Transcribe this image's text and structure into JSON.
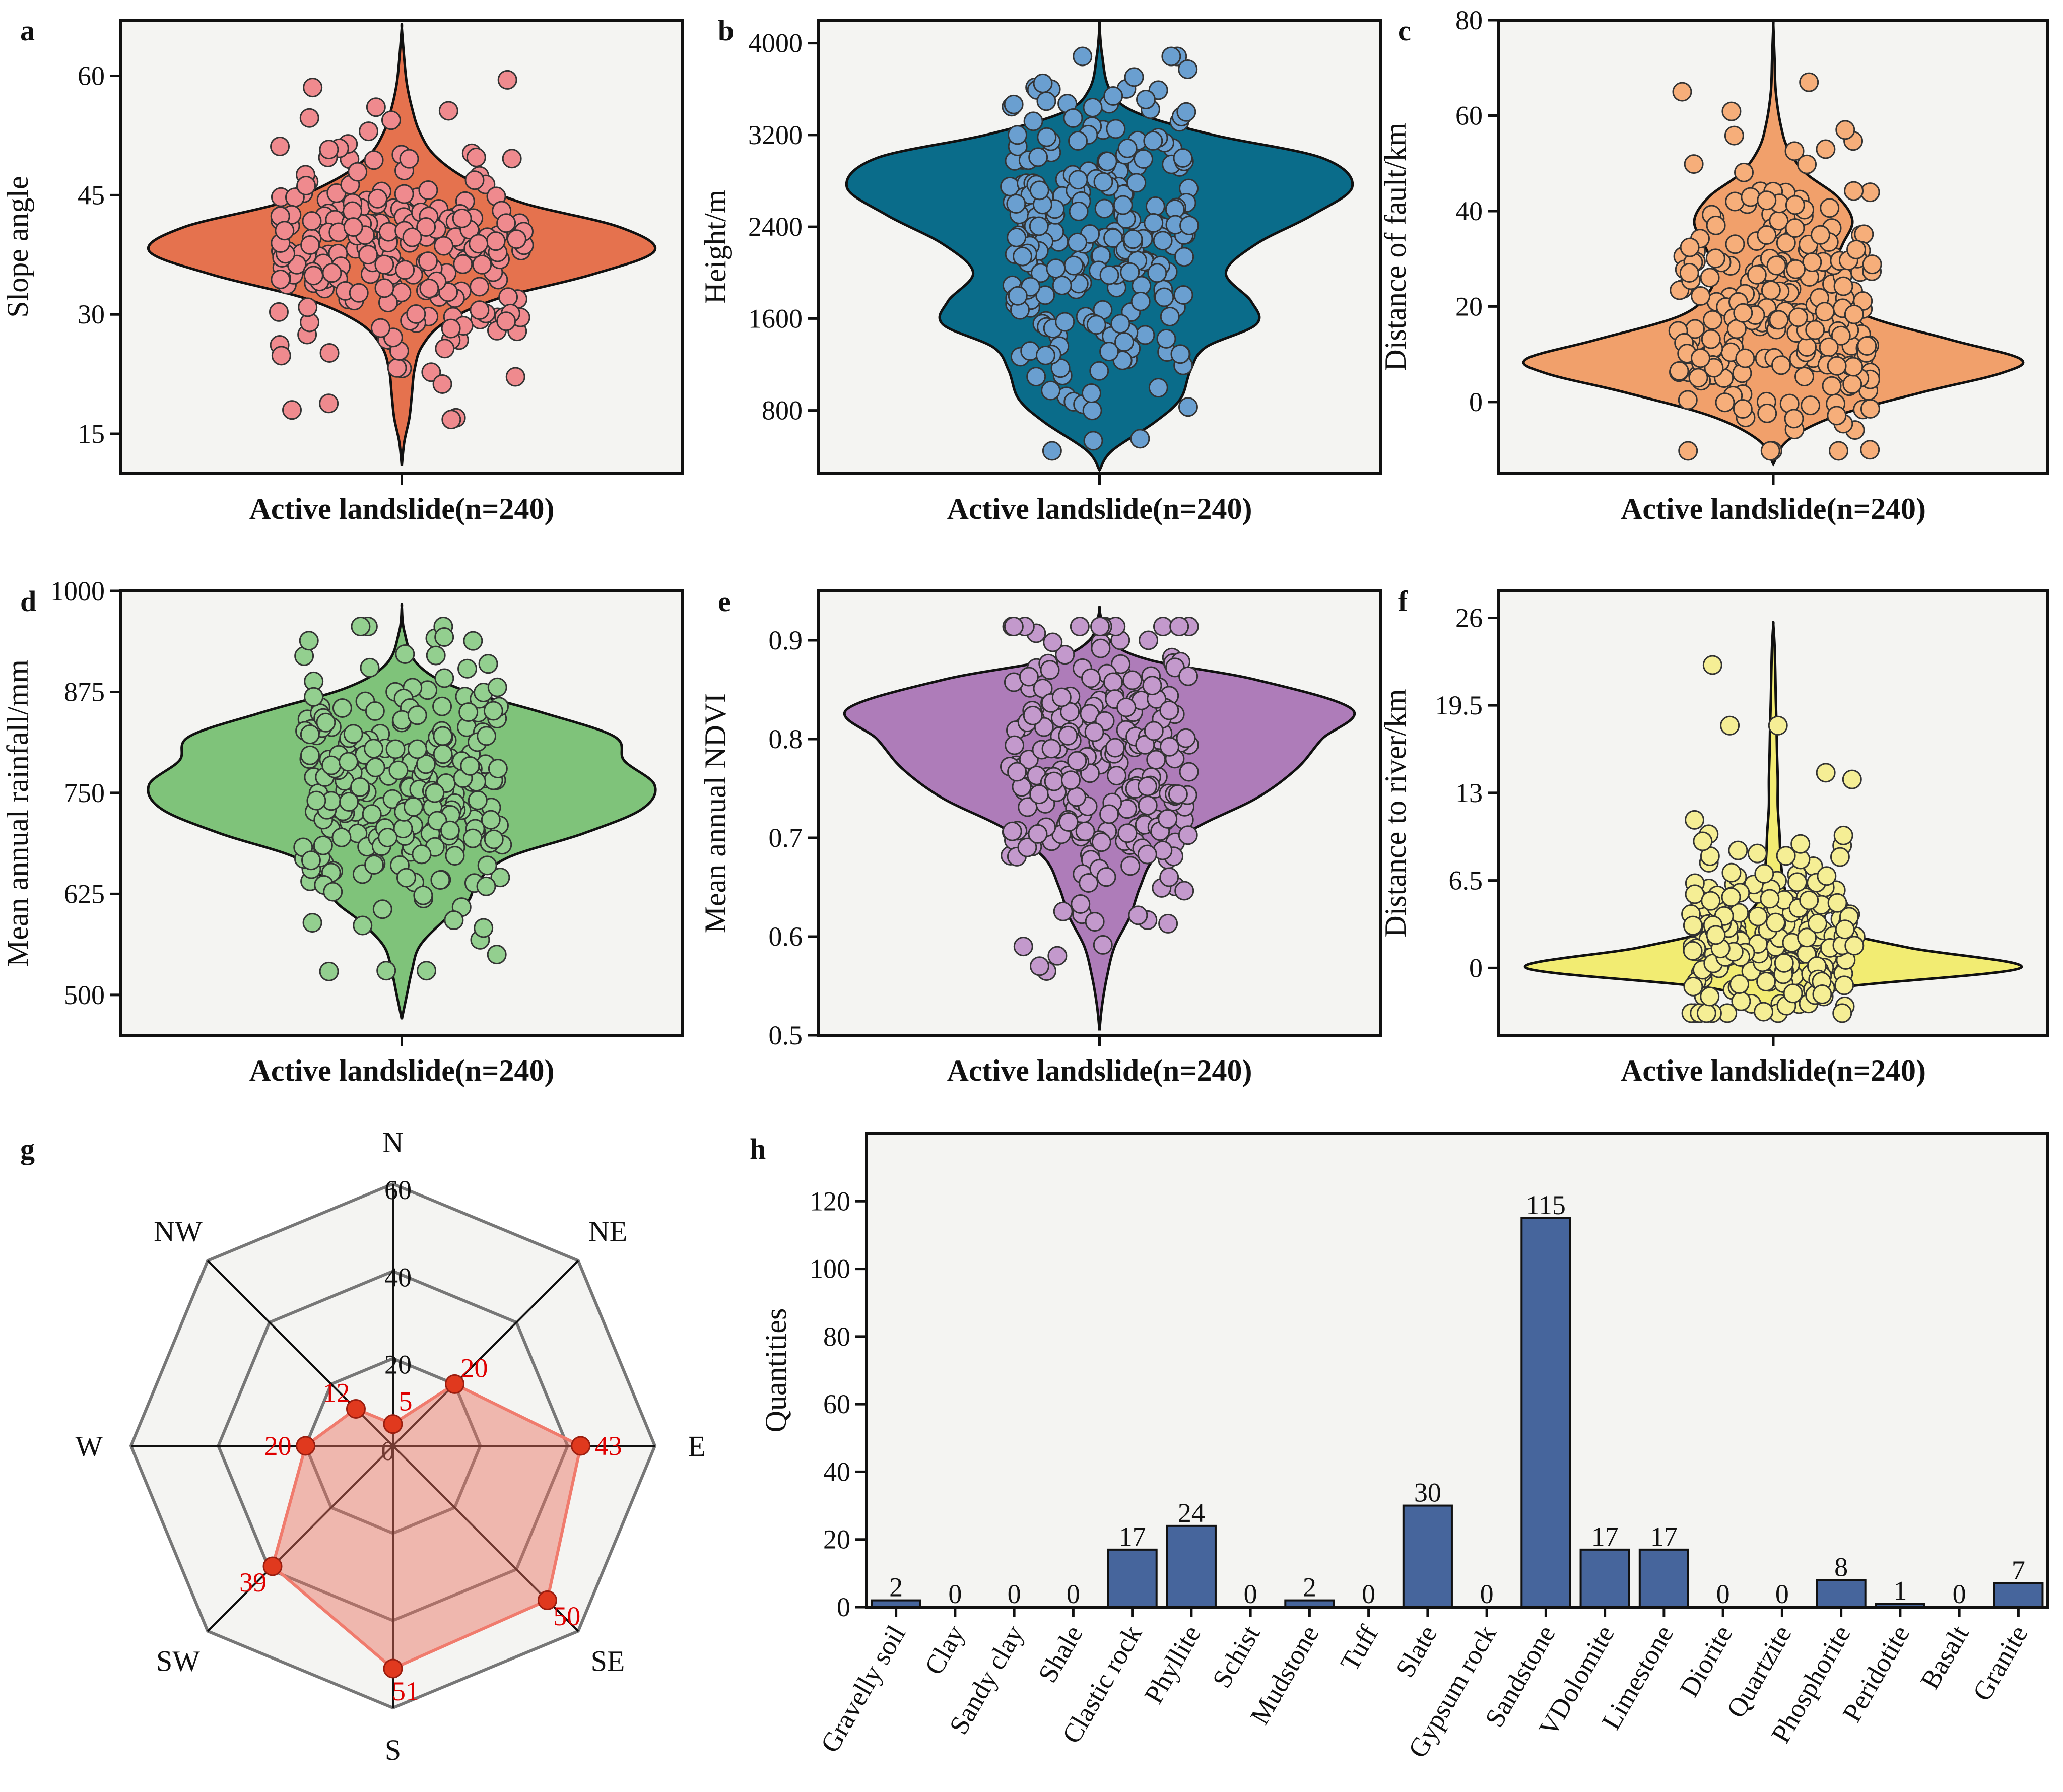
{
  "panels": [
    {
      "id": "a",
      "label": "a",
      "ylabel": "Slope angle",
      "xlabel": "Active landslide(n=240)",
      "ylim": [
        10,
        67
      ],
      "yticks": [
        15,
        30,
        45,
        60
      ],
      "fill": "#e5724e",
      "dot": "#ef8a8e",
      "density": [
        [
          11,
          0.0
        ],
        [
          14,
          0.01
        ],
        [
          17,
          0.03
        ],
        [
          20,
          0.04
        ],
        [
          23,
          0.05
        ],
        [
          26,
          0.08
        ],
        [
          29,
          0.17
        ],
        [
          32,
          0.38
        ],
        [
          35,
          0.75
        ],
        [
          38,
          1.0
        ],
        [
          41,
          0.86
        ],
        [
          44,
          0.48
        ],
        [
          47,
          0.26
        ],
        [
          50,
          0.13
        ],
        [
          53,
          0.07
        ],
        [
          56,
          0.04
        ],
        [
          59,
          0.02
        ],
        [
          62,
          0.01
        ],
        [
          66,
          0.0
        ]
      ],
      "points": {
        "center": 38,
        "spread": 7,
        "jitter": 0.22,
        "seed": 3,
        "extra": [
          59.5,
          55.6,
          18,
          16.8
        ]
      }
    },
    {
      "id": "b",
      "label": "b",
      "ylabel": "Height/m",
      "xlabel": "Active landslide(n=240)",
      "ylim": [
        250,
        4200
      ],
      "yticks": [
        800,
        1600,
        2400,
        3200,
        4000
      ],
      "fill": "#0a6c8a",
      "dot": "#6a9fd0",
      "density": [
        [
          280,
          0.0
        ],
        [
          450,
          0.05
        ],
        [
          700,
          0.22
        ],
        [
          900,
          0.32
        ],
        [
          1150,
          0.36
        ],
        [
          1350,
          0.42
        ],
        [
          1550,
          0.62
        ],
        [
          1750,
          0.6
        ],
        [
          2000,
          0.5
        ],
        [
          2250,
          0.62
        ],
        [
          2500,
          0.84
        ],
        [
          2750,
          1.0
        ],
        [
          3000,
          0.88
        ],
        [
          3200,
          0.45
        ],
        [
          3400,
          0.14
        ],
        [
          3600,
          0.04
        ],
        [
          3900,
          0.01
        ],
        [
          4150,
          0.0
        ]
      ],
      "points": {
        "center": 2300,
        "spread": 700,
        "jitter": 0.16,
        "seed": 7,
        "extra": [
          3400,
          3650,
          800,
          950
        ]
      }
    },
    {
      "id": "c",
      "label": "c",
      "ylabel": "Distance of fault/km",
      "xlabel": "Active landslide(n=240)",
      "ylim": [
        -15,
        80
      ],
      "yticks": [
        0,
        20,
        40,
        60,
        80
      ],
      "fill": "#f1a06b",
      "dot": "#f6ae7a",
      "density": [
        [
          -13,
          0.0
        ],
        [
          -8,
          0.06
        ],
        [
          -3,
          0.25
        ],
        [
          2,
          0.6
        ],
        [
          6,
          0.92
        ],
        [
          9,
          1.0
        ],
        [
          13,
          0.72
        ],
        [
          18,
          0.38
        ],
        [
          23,
          0.26
        ],
        [
          28,
          0.24
        ],
        [
          33,
          0.28
        ],
        [
          38,
          0.32
        ],
        [
          43,
          0.26
        ],
        [
          48,
          0.13
        ],
        [
          53,
          0.06
        ],
        [
          58,
          0.03
        ],
        [
          65,
          0.01
        ],
        [
          72,
          0.005
        ],
        [
          79,
          0.0
        ]
      ],
      "points": {
        "center": 20,
        "spread": 15,
        "jitter": 0.18,
        "seed": 11,
        "extra": [
          65,
          67,
          57,
          37
        ]
      }
    },
    {
      "id": "d",
      "label": "d",
      "ylabel": "Mean annual rainfall/mm",
      "xlabel": "Active landslide(n=240)",
      "ylim": [
        450,
        1000
      ],
      "yticks": [
        500,
        625,
        750,
        875,
        1000
      ],
      "fill": "#7fc37a",
      "dot": "#93cf8f",
      "density": [
        [
          470,
          0.0
        ],
        [
          500,
          0.02
        ],
        [
          530,
          0.04
        ],
        [
          560,
          0.07
        ],
        [
          590,
          0.16
        ],
        [
          615,
          0.26
        ],
        [
          640,
          0.3
        ],
        [
          670,
          0.42
        ],
        [
          700,
          0.72
        ],
        [
          730,
          0.95
        ],
        [
          760,
          1.0
        ],
        [
          790,
          0.88
        ],
        [
          820,
          0.84
        ],
        [
          850,
          0.55
        ],
        [
          880,
          0.22
        ],
        [
          910,
          0.06
        ],
        [
          950,
          0.01
        ],
        [
          980,
          0.0
        ]
      ],
      "points": {
        "center": 750,
        "spread": 80,
        "jitter": 0.18,
        "seed": 17,
        "extra": [
          530,
          530,
          550,
          905
        ]
      }
    },
    {
      "id": "e",
      "label": "e",
      "ylabel": "Mean annual NDVI",
      "xlabel": "Active landslide(n=240)",
      "ylim": [
        0.5,
        0.95
      ],
      "yticks": [
        0.5,
        0.6,
        0.7,
        0.8,
        0.9
      ],
      "fill": "#ae7cb9",
      "dot": "#c399cc",
      "density": [
        [
          0.505,
          0.0
        ],
        [
          0.53,
          0.01
        ],
        [
          0.56,
          0.03
        ],
        [
          0.59,
          0.06
        ],
        [
          0.62,
          0.12
        ],
        [
          0.65,
          0.16
        ],
        [
          0.68,
          0.22
        ],
        [
          0.71,
          0.38
        ],
        [
          0.74,
          0.62
        ],
        [
          0.77,
          0.78
        ],
        [
          0.8,
          0.88
        ],
        [
          0.83,
          1.0
        ],
        [
          0.86,
          0.62
        ],
        [
          0.88,
          0.2
        ],
        [
          0.9,
          0.04
        ],
        [
          0.93,
          0.0
        ]
      ],
      "points": {
        "center": 0.77,
        "spread": 0.07,
        "jitter": 0.16,
        "seed": 23,
        "extra": [
          0.565,
          0.57,
          0.59,
          0.615
        ]
      }
    },
    {
      "id": "f",
      "label": "f",
      "ylabel": "Distance to river/km",
      "xlabel": "Active landslide(n=240)",
      "ylim": [
        -5,
        28
      ],
      "yticks": [
        0,
        6.5,
        13,
        19.5,
        26
      ],
      "ytick_labels": [
        "0",
        "6.5",
        "13",
        "19.5",
        "26"
      ],
      "fill": "#f2ec72",
      "dot": "#f5ee95",
      "density": [
        [
          -3,
          0.0
        ],
        [
          -1.5,
          0.25
        ],
        [
          0,
          1.0
        ],
        [
          1.5,
          0.55
        ],
        [
          3,
          0.2
        ],
        [
          4.5,
          0.08
        ],
        [
          6,
          0.045
        ],
        [
          8,
          0.03
        ],
        [
          10,
          0.025
        ],
        [
          12,
          0.018
        ],
        [
          14,
          0.018
        ],
        [
          16,
          0.015
        ],
        [
          18,
          0.013
        ],
        [
          20,
          0.01
        ],
        [
          22,
          0.008
        ],
        [
          24,
          0.005
        ],
        [
          25.5,
          0.0
        ]
      ],
      "points": {
        "center": 2,
        "spread": 3,
        "jitter": 0.15,
        "seed": 29,
        "extra": [
          22.5,
          18,
          18,
          14.5,
          14,
          11,
          8.5,
          7
        ]
      }
    }
  ],
  "radar": {
    "label": "g",
    "directions": [
      "N",
      "NE",
      "E",
      "SE",
      "S",
      "SW",
      "W",
      "NW"
    ],
    "values": [
      5,
      20,
      43,
      50,
      51,
      39,
      20,
      12
    ],
    "value_labels": [
      "5",
      "20",
      "43",
      "50",
      "51",
      "39",
      "20",
      "12"
    ],
    "rings": [
      20,
      40,
      60
    ],
    "ring_labels": [
      "20",
      "40",
      "60"
    ],
    "center_label": "0",
    "max": 60
  },
  "chart_data": [
    {
      "type": "violin",
      "title": "a",
      "xlabel": "Active landslide(n=240)",
      "ylabel": "Slope angle",
      "ylim": [
        10,
        67
      ],
      "n": 240
    },
    {
      "type": "violin",
      "title": "b",
      "xlabel": "Active landslide(n=240)",
      "ylabel": "Height/m",
      "ylim": [
        250,
        4200
      ],
      "n": 240
    },
    {
      "type": "violin",
      "title": "c",
      "xlabel": "Active landslide(n=240)",
      "ylabel": "Distance of fault/km",
      "ylim": [
        -15,
        80
      ],
      "n": 240
    },
    {
      "type": "violin",
      "title": "d",
      "xlabel": "Active landslide(n=240)",
      "ylabel": "Mean annual rainfall/mm",
      "ylim": [
        450,
        1000
      ],
      "n": 240
    },
    {
      "type": "violin",
      "title": "e",
      "xlabel": "Active landslide(n=240)",
      "ylabel": "Mean annual NDVI",
      "ylim": [
        0.5,
        0.95
      ],
      "n": 240
    },
    {
      "type": "violin",
      "title": "f",
      "xlabel": "Active landslide(n=240)",
      "ylabel": "Distance to river/km",
      "ylim": [
        -5,
        28
      ],
      "n": 240
    },
    {
      "type": "radar",
      "title": "g",
      "categories": [
        "N",
        "NE",
        "E",
        "SE",
        "S",
        "SW",
        "W",
        "NW"
      ],
      "values": [
        5,
        20,
        43,
        50,
        51,
        39,
        20,
        12
      ],
      "rmax": 60
    },
    {
      "type": "bar",
      "title": "h",
      "xlabel": "",
      "ylabel": "Quantities",
      "ylim": [
        0,
        140
      ],
      "yticks": [
        0,
        20,
        40,
        60,
        80,
        100,
        120
      ],
      "categories": [
        "Gravelly soil",
        "Clay",
        "Sandy clay",
        "Shale",
        "Clastic rock",
        "Phyllite",
        "Schist",
        "Mudstone",
        "Tuff",
        "Slate",
        "Gypsum rock",
        "Sandstone",
        "VDolomite",
        "Limestone",
        "Diorite",
        "Quartzite",
        "Phosphorite",
        "Peridotite",
        "Basalt",
        "Granite"
      ],
      "values": [
        2,
        0,
        0,
        0,
        17,
        24,
        0,
        2,
        0,
        30,
        0,
        115,
        17,
        17,
        0,
        0,
        8,
        1,
        0,
        7
      ]
    }
  ],
  "bar": {
    "label": "h",
    "ylabel": "Quantities"
  }
}
